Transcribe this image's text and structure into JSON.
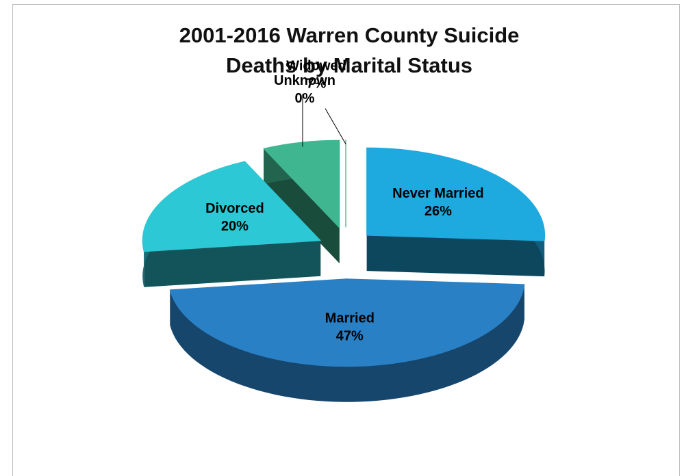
{
  "chart_data": {
    "type": "pie",
    "title": "2001-2016 Warren County Suicide Deaths by Marital Status",
    "categories": [
      "Never Married",
      "Married",
      "Divorced",
      "Widowed",
      "Unknown"
    ],
    "values": [
      26,
      47,
      20,
      7,
      0
    ],
    "value_labels": [
      "26%",
      "47%",
      "20%",
      "7%",
      "0%"
    ],
    "colors": [
      "#1ea9df",
      "#2a80c5",
      "#2cc8d5",
      "#3fb68f",
      "#2e8c5c"
    ]
  }
}
